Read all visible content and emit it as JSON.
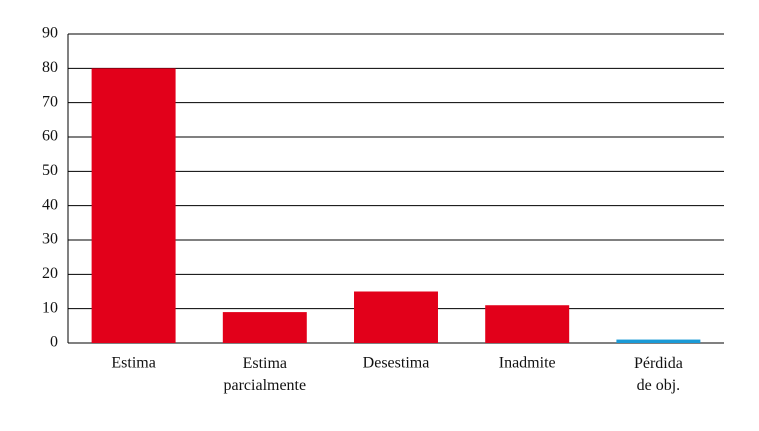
{
  "chart_data": {
    "type": "bar",
    "categories": [
      "Estima",
      "Estima\nparcialmente",
      "Desestima",
      "Inadmite",
      "Pérdida\nde obj."
    ],
    "values": [
      80,
      9,
      15,
      11,
      1
    ],
    "colors": [
      "#e2001a",
      "#e2001a",
      "#e2001a",
      "#e2001a",
      "#1a9ad6"
    ],
    "ylim": [
      0,
      90
    ],
    "yticks": [
      0,
      10,
      20,
      30,
      40,
      50,
      60,
      70,
      80,
      90
    ],
    "grid": true
  }
}
